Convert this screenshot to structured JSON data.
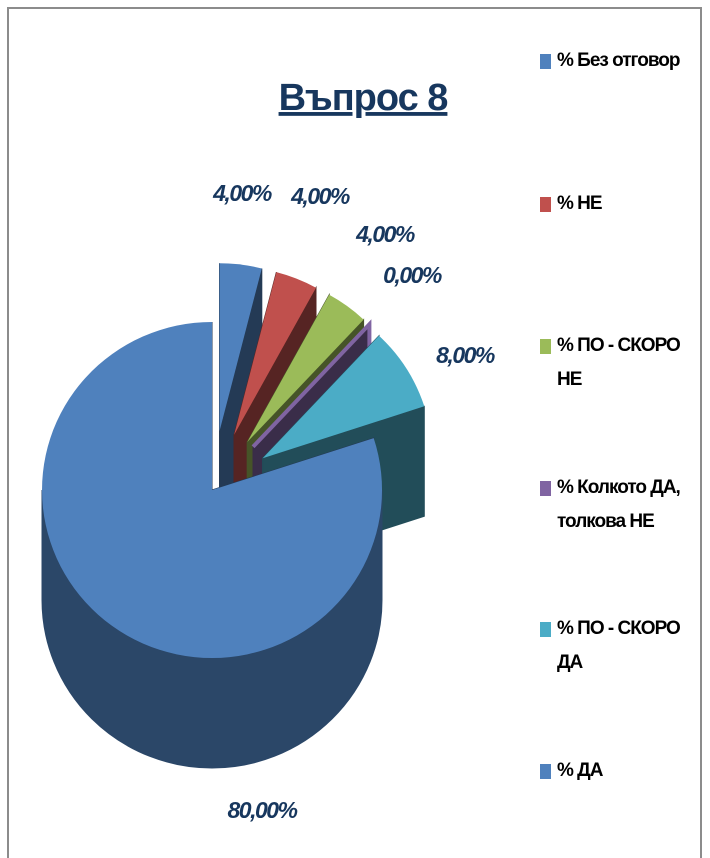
{
  "chart_data": {
    "type": "pie3d",
    "title": "Въпрос 8",
    "categories": [
      "% Без отговор",
      "% НЕ",
      "% ПО - СКОРО НЕ",
      "% Колкото ДА, толкова НЕ",
      "% ПО - СКОРО ДА",
      "% ДА"
    ],
    "values": [
      4,
      4,
      4,
      0,
      8,
      80
    ],
    "value_labels": [
      "4,00%",
      "4,00%",
      "4,00%",
      "0,00%",
      "8,00%",
      "80,00%"
    ],
    "colors": [
      "#4f81bd",
      "#c0504d",
      "#9bbb59",
      "#8064a2",
      "#4bacc6",
      "#4f81bd"
    ],
    "legend": "right"
  }
}
